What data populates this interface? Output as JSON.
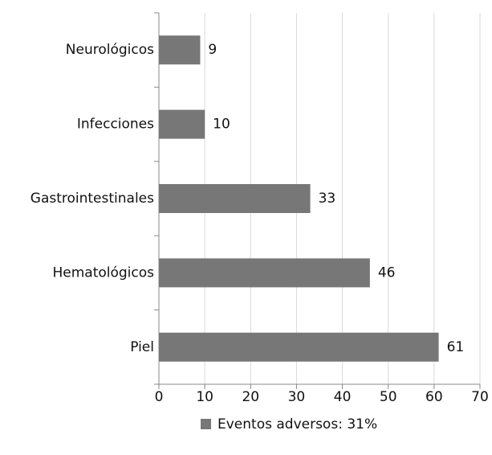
{
  "chart_data": {
    "type": "bar",
    "orientation": "horizontal",
    "categories": [
      "Neurológicos",
      "Infecciones",
      "Gastrointestinales",
      "Hematológicos",
      "Piel"
    ],
    "series": [
      {
        "name": "Eventos adversos: 31%",
        "color": "#777777",
        "values": [
          9,
          10,
          33,
          46,
          61
        ]
      }
    ],
    "xlim": [
      0,
      70
    ],
    "xticks": [
      0,
      10,
      20,
      30,
      40,
      50,
      60,
      70
    ],
    "grid": true,
    "legend": "bottom"
  }
}
